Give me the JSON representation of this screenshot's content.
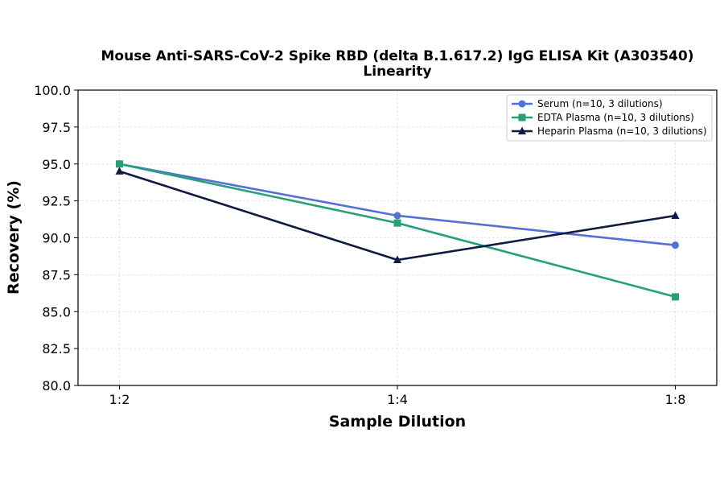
{
  "chart_data": {
    "type": "line",
    "title_lines": [
      "Mouse Anti-SARS-CoV-2 Spike RBD (delta B.1.617.2) IgG ELISA Kit (A303540)",
      "Linearity"
    ],
    "xlabel": "Sample Dilution",
    "ylabel": "Recovery (%)",
    "categories": [
      "1:2",
      "1:4",
      "1:8"
    ],
    "ylim": [
      80.0,
      100.0
    ],
    "yticks": [
      "80.0",
      "82.5",
      "85.0",
      "87.5",
      "90.0",
      "92.5",
      "95.0",
      "97.5",
      "100.0"
    ],
    "grid": true,
    "legend_position": "top-right",
    "series": [
      {
        "name": "Serum (n=10, 3 dilutions)",
        "values": [
          95.0,
          91.5,
          89.5
        ],
        "color": "#5470d6",
        "marker": "circle"
      },
      {
        "name": "EDTA Plasma (n=10, 3 dilutions)",
        "values": [
          95.0,
          91.0,
          86.0
        ],
        "color": "#27a07a",
        "marker": "square"
      },
      {
        "name": "Heparin Plasma (n=10, 3 dilutions)",
        "values": [
          94.5,
          88.5,
          91.5
        ],
        "color": "#101a45",
        "marker": "triangle"
      }
    ]
  }
}
